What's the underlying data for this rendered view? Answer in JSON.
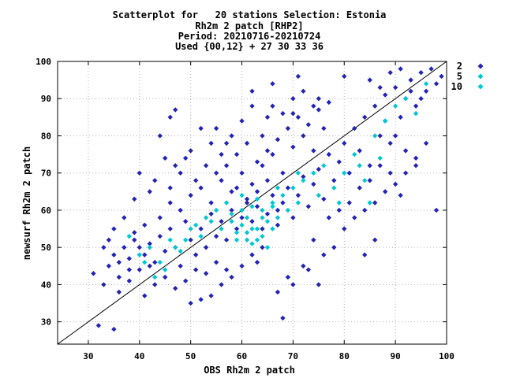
{
  "chart_data": {
    "type": "scatter",
    "title_lines": [
      "Scatterplot for   20 stations Selection: Estonia",
      "Rh2m 2 patch [RHP2]",
      "Period: 20210716-20210724",
      "Used {00,12} + 27 30 33 36"
    ],
    "xlabel": "OBS Rh2m 2 patch",
    "ylabel": "newsurf Rh2m 2 patch",
    "xlim": [
      24,
      100
    ],
    "ylim": [
      24,
      100
    ],
    "xticks": [
      30,
      40,
      50,
      60,
      70,
      80,
      90,
      100
    ],
    "yticks": [
      30,
      40,
      50,
      60,
      70,
      80,
      90,
      100
    ],
    "grid": true,
    "reference_line": "y = x",
    "legend_position": "top-right outside",
    "series": [
      {
        "name": "2",
        "color": "#2323b4",
        "marker": "diamond",
        "points": [
          [
            32,
            29
          ],
          [
            35,
            28
          ],
          [
            31,
            43
          ],
          [
            33,
            40
          ],
          [
            34,
            45
          ],
          [
            35,
            48
          ],
          [
            36,
            42
          ],
          [
            37,
            50
          ],
          [
            38,
            47
          ],
          [
            39,
            52
          ],
          [
            40,
            44
          ],
          [
            41,
            48
          ],
          [
            42,
            51
          ],
          [
            43,
            46
          ],
          [
            44,
            53
          ],
          [
            45,
            49
          ],
          [
            46,
            55
          ],
          [
            47,
            50
          ],
          [
            48,
            45
          ],
          [
            49,
            57
          ],
          [
            50,
            52
          ],
          [
            51,
            48
          ],
          [
            52,
            55
          ],
          [
            53,
            50
          ],
          [
            54,
            59
          ],
          [
            55,
            53
          ],
          [
            56,
            57
          ],
          [
            57,
            52
          ],
          [
            58,
            60
          ],
          [
            59,
            55
          ],
          [
            60,
            58
          ],
          [
            61,
            63
          ],
          [
            62,
            57
          ],
          [
            63,
            61
          ],
          [
            64,
            55
          ],
          [
            65,
            59
          ],
          [
            66,
            64
          ],
          [
            67,
            60
          ],
          [
            68,
            62
          ],
          [
            69,
            66
          ],
          [
            70,
            58
          ],
          [
            71,
            64
          ],
          [
            72,
            69
          ],
          [
            73,
            61
          ],
          [
            74,
            67
          ],
          [
            75,
            71
          ],
          [
            76,
            63
          ],
          [
            77,
            75
          ],
          [
            78,
            68
          ],
          [
            79,
            73
          ],
          [
            80,
            78
          ],
          [
            81,
            70
          ],
          [
            82,
            82
          ],
          [
            83,
            76
          ],
          [
            84,
            85
          ],
          [
            85,
            72
          ],
          [
            86,
            88
          ],
          [
            87,
            80
          ],
          [
            88,
            91
          ],
          [
            89,
            78
          ],
          [
            90,
            93
          ],
          [
            91,
            85
          ],
          [
            92,
            90
          ],
          [
            93,
            95
          ],
          [
            94,
            88
          ],
          [
            95,
            97
          ],
          [
            96,
            92
          ],
          [
            97,
            98
          ],
          [
            98,
            94
          ],
          [
            99,
            96
          ],
          [
            36,
            38
          ],
          [
            38,
            41
          ],
          [
            41,
            37
          ],
          [
            43,
            40
          ],
          [
            45,
            42
          ],
          [
            47,
            39
          ],
          [
            49,
            41
          ],
          [
            51,
            44
          ],
          [
            53,
            43
          ],
          [
            55,
            46
          ],
          [
            44,
            58
          ],
          [
            46,
            62
          ],
          [
            48,
            60
          ],
          [
            50,
            64
          ],
          [
            52,
            66
          ],
          [
            54,
            62
          ],
          [
            56,
            68
          ],
          [
            58,
            65
          ],
          [
            60,
            70
          ],
          [
            62,
            67
          ],
          [
            64,
            72
          ],
          [
            66,
            75
          ],
          [
            68,
            70
          ],
          [
            70,
            77
          ],
          [
            72,
            80
          ],
          [
            74,
            76
          ],
          [
            76,
            82
          ],
          [
            60,
            84
          ],
          [
            64,
            80
          ],
          [
            68,
            86
          ],
          [
            55,
            82
          ],
          [
            57,
            78
          ],
          [
            62,
            88
          ],
          [
            65,
            85
          ],
          [
            70,
            90
          ],
          [
            72,
            92
          ],
          [
            74,
            88
          ],
          [
            66,
            94
          ],
          [
            71,
            96
          ],
          [
            75,
            90
          ],
          [
            40,
            70
          ],
          [
            43,
            68
          ],
          [
            45,
            74
          ],
          [
            47,
            72
          ],
          [
            42,
            65
          ],
          [
            39,
            63
          ],
          [
            46,
            66
          ],
          [
            48,
            70
          ],
          [
            44,
            80
          ],
          [
            47,
            87
          ],
          [
            80,
            55
          ],
          [
            82,
            58
          ],
          [
            84,
            60
          ],
          [
            86,
            62
          ],
          [
            88,
            65
          ],
          [
            90,
            67
          ],
          [
            92,
            70
          ],
          [
            94,
            72
          ],
          [
            96,
            78
          ],
          [
            98,
            60
          ],
          [
            78,
            50
          ],
          [
            76,
            48
          ],
          [
            74,
            52
          ],
          [
            72,
            45
          ],
          [
            70,
            40
          ],
          [
            73,
            44
          ],
          [
            75,
            40
          ],
          [
            69,
            42
          ],
          [
            67,
            38
          ],
          [
            68,
            31
          ],
          [
            58,
            42
          ],
          [
            60,
            45
          ],
          [
            62,
            48
          ],
          [
            64,
            50
          ],
          [
            56,
            40
          ],
          [
            54,
            37
          ],
          [
            52,
            36
          ],
          [
            50,
            35
          ],
          [
            57,
            44
          ],
          [
            63,
            46
          ],
          [
            85,
            95
          ],
          [
            87,
            93
          ],
          [
            89,
            97
          ],
          [
            91,
            98
          ],
          [
            93,
            92
          ],
          [
            95,
            90
          ],
          [
            88,
            84
          ],
          [
            90,
            80
          ],
          [
            92,
            76
          ],
          [
            94,
            74
          ],
          [
            83,
            66
          ],
          [
            85,
            68
          ],
          [
            87,
            72
          ],
          [
            89,
            70
          ],
          [
            91,
            64
          ],
          [
            81,
            62
          ],
          [
            79,
            60
          ],
          [
            77,
            58
          ],
          [
            86,
            52
          ],
          [
            84,
            48
          ],
          [
            35,
            55
          ],
          [
            37,
            58
          ],
          [
            39,
            54
          ],
          [
            41,
            56
          ],
          [
            33,
            50
          ],
          [
            36,
            46
          ],
          [
            40,
            50
          ],
          [
            42,
            45
          ],
          [
            38,
            44
          ],
          [
            34,
            52
          ],
          [
            59,
            75
          ],
          [
            61,
            78
          ],
          [
            63,
            73
          ],
          [
            65,
            76
          ],
          [
            67,
            79
          ],
          [
            69,
            82
          ],
          [
            71,
            85
          ],
          [
            73,
            83
          ],
          [
            75,
            87
          ],
          [
            77,
            89
          ],
          [
            53,
            72
          ],
          [
            55,
            70
          ],
          [
            51,
            68
          ],
          [
            49,
            74
          ],
          [
            57,
            72
          ],
          [
            59,
            66
          ],
          [
            61,
            62
          ],
          [
            63,
            65
          ],
          [
            65,
            68
          ],
          [
            67,
            56
          ],
          [
            46,
            85
          ],
          [
            52,
            82
          ],
          [
            54,
            78
          ],
          [
            56,
            75
          ],
          [
            50,
            76
          ],
          [
            58,
            80
          ],
          [
            62,
            92
          ],
          [
            66,
            88
          ],
          [
            70,
            86
          ],
          [
            80,
            96
          ]
        ]
      },
      {
        "name": "5",
        "color": "#00c8d2",
        "marker": "diamond",
        "points": [
          [
            38,
            53
          ],
          [
            40,
            48
          ],
          [
            42,
            50
          ],
          [
            44,
            46
          ],
          [
            46,
            52
          ],
          [
            48,
            49
          ],
          [
            50,
            55
          ],
          [
            52,
            53
          ],
          [
            54,
            57
          ],
          [
            56,
            55
          ],
          [
            58,
            59
          ],
          [
            60,
            56
          ],
          [
            61,
            58
          ],
          [
            62,
            61
          ],
          [
            63,
            55
          ],
          [
            64,
            60
          ],
          [
            65,
            57
          ],
          [
            66,
            62
          ],
          [
            67,
            58
          ],
          [
            68,
            64
          ],
          [
            69,
            60
          ],
          [
            70,
            66
          ],
          [
            71,
            62
          ],
          [
            72,
            68
          ],
          [
            74,
            70
          ],
          [
            76,
            72
          ],
          [
            78,
            66
          ],
          [
            80,
            70
          ],
          [
            82,
            75
          ],
          [
            84,
            68
          ],
          [
            86,
            80
          ],
          [
            88,
            84
          ],
          [
            90,
            88
          ],
          [
            92,
            90
          ],
          [
            94,
            86
          ],
          [
            96,
            94
          ],
          [
            59,
            52
          ],
          [
            61,
            54
          ],
          [
            63,
            52
          ],
          [
            65,
            50
          ],
          [
            57,
            62
          ],
          [
            55,
            60
          ],
          [
            53,
            58
          ],
          [
            51,
            56
          ],
          [
            49,
            52
          ],
          [
            47,
            50
          ],
          [
            45,
            44
          ],
          [
            43,
            42
          ],
          [
            41,
            46
          ],
          [
            60,
            64
          ],
          [
            66,
            55
          ],
          [
            64,
            53
          ],
          [
            62,
            51
          ],
          [
            67,
            66
          ],
          [
            71,
            70
          ],
          [
            75,
            64
          ],
          [
            79,
            62
          ],
          [
            83,
            72
          ],
          [
            85,
            62
          ],
          [
            87,
            74
          ]
        ]
      },
      {
        "name": "10",
        "color": "#00c8d2",
        "marker": "diamond",
        "points": [
          [
            58,
            57
          ],
          [
            60,
            60
          ],
          [
            62,
            55
          ],
          [
            64,
            58
          ],
          [
            66,
            61
          ],
          [
            63,
            63
          ],
          [
            61,
            52
          ],
          [
            59,
            54
          ]
        ]
      }
    ]
  }
}
